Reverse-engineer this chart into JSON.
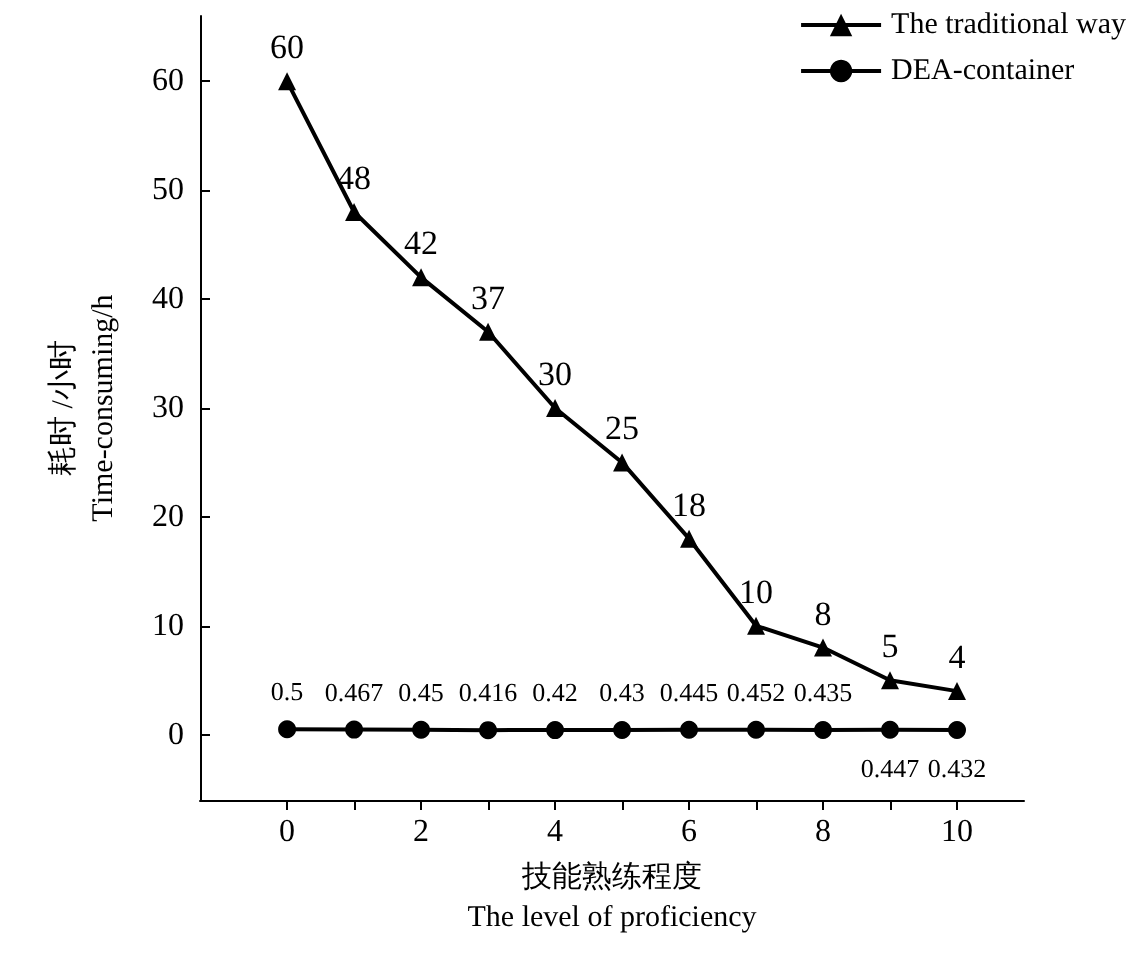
{
  "chart_data": {
    "type": "line",
    "xlabel": "技能熟练程度\nThe level of proficiency",
    "ylabel": "耗时 /小时\nTime-consuming/h",
    "x": [
      0,
      1,
      2,
      3,
      4,
      5,
      6,
      7,
      8,
      9,
      10
    ],
    "series": [
      {
        "name": "The traditional way",
        "color": "#000000",
        "marker": "triangle",
        "values": [
          60,
          48,
          42,
          37,
          30,
          25,
          18,
          10,
          8,
          5,
          4
        ]
      },
      {
        "name": "DEA-container",
        "color": "#000000",
        "marker": "circle",
        "values": [
          0.5,
          0.467,
          0.45,
          0.416,
          0.42,
          0.43,
          0.445,
          0.452,
          0.435,
          0.447,
          0.432
        ]
      }
    ],
    "xlim": [
      -1.3,
      11
    ],
    "xticks": [
      0,
      {
        "value": 1,
        "label": null
      },
      2,
      {
        "value": 3,
        "label": null
      },
      4,
      {
        "value": 5,
        "label": null
      },
      6,
      {
        "value": 7,
        "label": null
      },
      8,
      {
        "value": 9,
        "label": null
      },
      10
    ],
    "ylim": [
      -6,
      66
    ],
    "yticks": [
      0,
      10,
      20,
      30,
      40,
      50,
      60
    ],
    "data_labels": true,
    "legend": "top right",
    "grid": false,
    "line_style": "solid"
  }
}
